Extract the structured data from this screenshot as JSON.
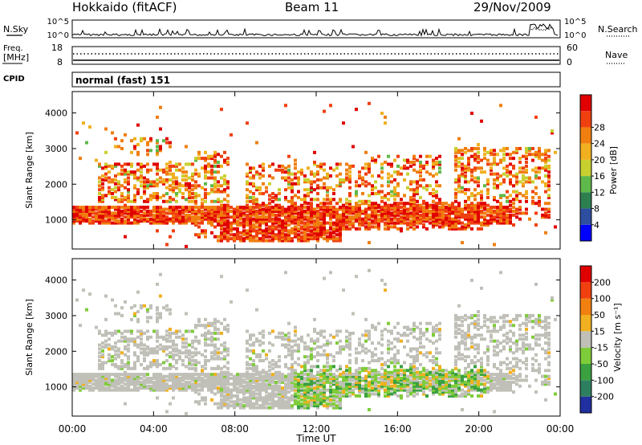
{
  "header": {
    "station": "Hokkaido (fitACF)",
    "beam": "Beam 11",
    "date": "29/Nov/2009"
  },
  "noise_panel": {
    "left_label": "N.Sky",
    "right_label": "N.Search",
    "y_ticks": [
      "10^5",
      "10^0"
    ]
  },
  "freq_panel": {
    "left_label_line1": "Freq.",
    "left_label_line2": "[MHz]",
    "left_ticks": [
      "18",
      "8"
    ],
    "right_label": "Nave",
    "right_ticks": [
      "60",
      "0"
    ]
  },
  "cpid_panel": {
    "label": "CPID",
    "value": "normal (fast) 151"
  },
  "chart_data": [
    {
      "type": "heatmap",
      "ylabel": "Slant Range [km]",
      "y_ticks": [
        1000,
        2000,
        3000,
        4000
      ],
      "ylim": [
        180,
        4600
      ],
      "colorbar": {
        "label": "Power [dB]",
        "ticks": [
          4,
          8,
          12,
          16,
          20,
          24,
          28
        ],
        "range": [
          0,
          30
        ],
        "colors": [
          "#0000ff",
          "#2e4fa0",
          "#2e7f50",
          "#5fb84a",
          "#c8d030",
          "#f0b020",
          "#f07f10",
          "#f04010",
          "#e00000"
        ]
      }
    },
    {
      "type": "heatmap",
      "ylabel": "Velocity [m s⁻¹]",
      "yaxis_label": "Slant Range [km]",
      "y_ticks": [
        1000,
        2000,
        3000,
        4000
      ],
      "ylim": [
        180,
        4600
      ],
      "colorbar": {
        "label": "Velocity [m s⁻¹]",
        "ticks": [
          200,
          100,
          50,
          15,
          -15,
          -50,
          -100,
          -200
        ],
        "colors": [
          "#2030a0",
          "#2e7f60",
          "#3aa040",
          "#7fcc3a",
          "#c0c0b8",
          "#f0b020",
          "#f08010",
          "#f04010",
          "#e00000"
        ]
      },
      "xlabel": "Time UT",
      "x_ticks": [
        "00:00",
        "04:00",
        "08:00",
        "12:00",
        "16:00",
        "20:00",
        "00:00"
      ]
    }
  ]
}
